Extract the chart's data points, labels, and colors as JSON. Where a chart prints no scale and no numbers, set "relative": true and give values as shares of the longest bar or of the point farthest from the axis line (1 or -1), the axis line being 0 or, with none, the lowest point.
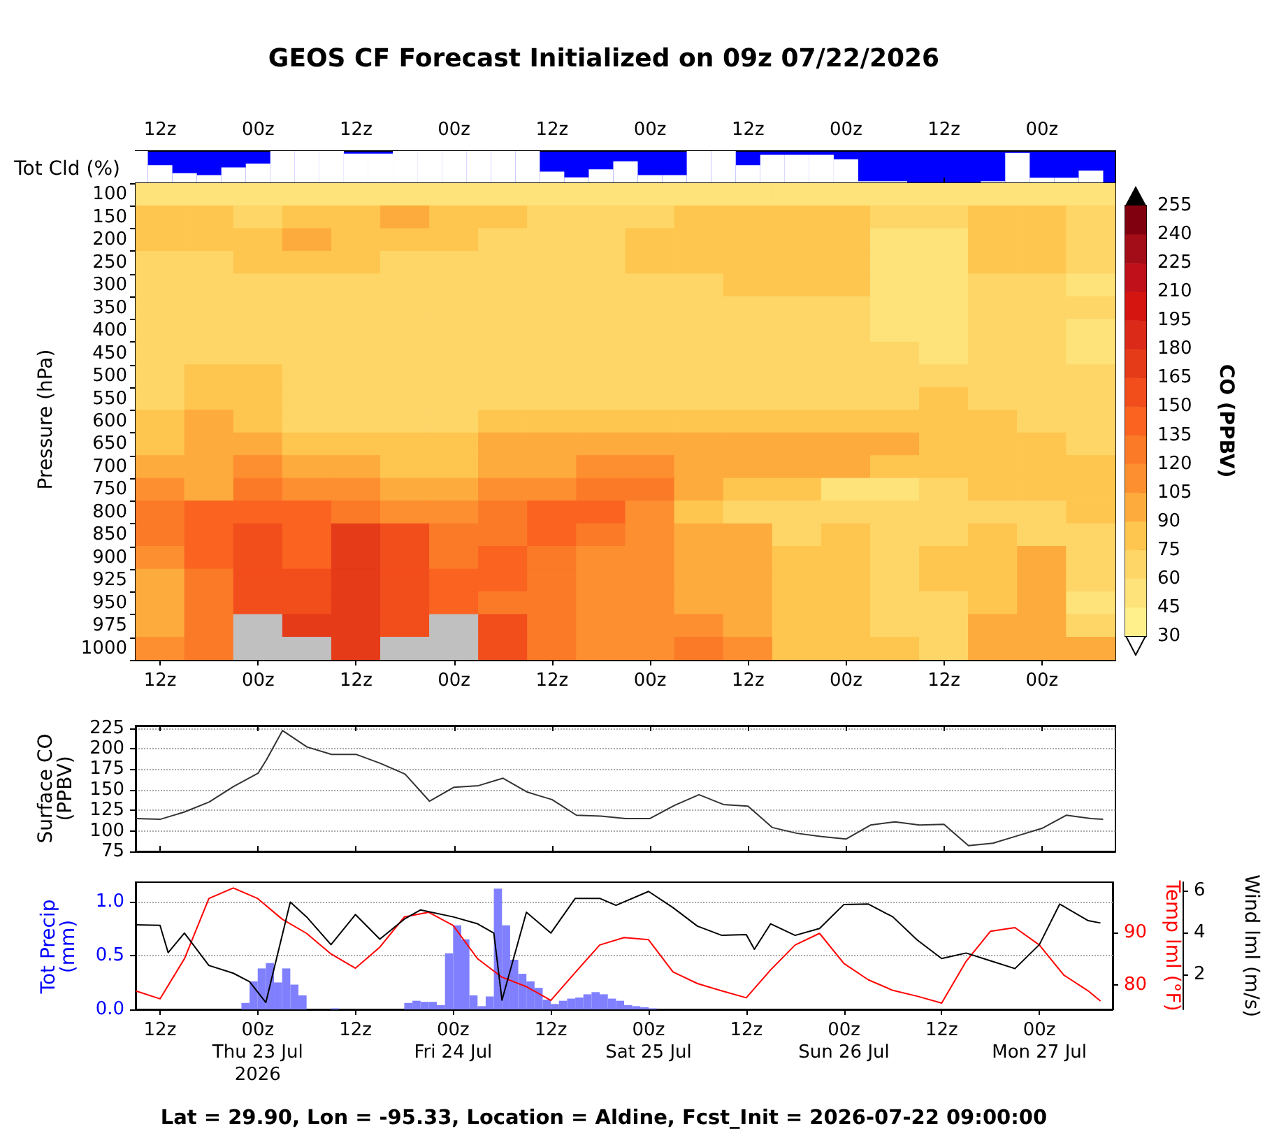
{
  "chart_data": [
    {
      "type": "bar",
      "title": "GEOS CF Forecast Initialized on 09z 07/22/2026",
      "ylabel": "Tot Cld (%)",
      "relative": true,
      "color": "#ffffff",
      "tick_labels": "x",
      "xlim": [
        "2026-07-22T09:00",
        "2026-07-27T09:00"
      ],
      "xticks": [
        {
          "value": "2026-07-22T12:00",
          "label": "12z"
        },
        {
          "value": "2026-07-23T00:00",
          "label": "00z"
        },
        {
          "value": "2026-07-23T12:00",
          "label": "12z"
        },
        {
          "value": "2026-07-24T00:00",
          "label": "00z"
        },
        {
          "value": "2026-07-24T12:00",
          "label": "12z"
        },
        {
          "value": "2026-07-25T00:00",
          "label": "00z"
        },
        {
          "value": "2026-07-25T12:00",
          "label": "12z"
        },
        {
          "value": "2026-07-26T00:00",
          "label": "00z"
        },
        {
          "value": "2026-07-26T12:00",
          "label": "12z"
        },
        {
          "value": "2026-07-27T00:00",
          "label": "00z"
        }
      ],
      "x": [
        "2026-07-22T09:00",
        "2026-07-22T12:00",
        "2026-07-22T15:00",
        "2026-07-22T18:00",
        "2026-07-22T21:00",
        "2026-07-23T00:00",
        "2026-07-23T03:00",
        "2026-07-23T06:00",
        "2026-07-23T09:00",
        "2026-07-23T12:00",
        "2026-07-23T15:00",
        "2026-07-23T18:00",
        "2026-07-23T21:00",
        "2026-07-24T00:00",
        "2026-07-24T03:00",
        "2026-07-24T06:00",
        "2026-07-24T09:00",
        "2026-07-24T12:00",
        "2026-07-24T15:00",
        "2026-07-24T18:00",
        "2026-07-24T21:00",
        "2026-07-25T00:00",
        "2026-07-25T03:00",
        "2026-07-25T06:00",
        "2026-07-25T09:00",
        "2026-07-25T12:00",
        "2026-07-25T15:00",
        "2026-07-25T18:00",
        "2026-07-25T21:00",
        "2026-07-26T00:00",
        "2026-07-26T03:00",
        "2026-07-26T06:00",
        "2026-07-26T09:00",
        "2026-07-26T12:00",
        "2026-07-26T15:00",
        "2026-07-26T18:00",
        "2026-07-26T21:00",
        "2026-07-27T00:00",
        "2026-07-27T03:00",
        "2026-07-27T06:00"
      ],
      "values": [
        1,
        0.56,
        0.31,
        0.25,
        0.49,
        0.61,
        1,
        1,
        1,
        0.92,
        0.92,
        1,
        1,
        1,
        1,
        1,
        1,
        0.36,
        0.18,
        0.43,
        0.68,
        0.25,
        0.25,
        1,
        1,
        0.56,
        0.88,
        0.88,
        0.88,
        0.74,
        0.06,
        0.06,
        0,
        0,
        0,
        0.06,
        0.94,
        0.17,
        0.17,
        0.39
      ]
    },
    {
      "type": "heatmap",
      "ylabel": "Pressure (hPa)",
      "clabel": "CO (PPBV)",
      "xlim": [
        "2026-07-22T09:00",
        "2026-07-27T09:00"
      ],
      "xticks": [
        {
          "value": "2026-07-22T12:00",
          "label": "12z"
        },
        {
          "value": "2026-07-23T00:00",
          "label": "00z"
        },
        {
          "value": "2026-07-23T12:00",
          "label": "12z"
        },
        {
          "value": "2026-07-24T00:00",
          "label": "00z"
        },
        {
          "value": "2026-07-24T12:00",
          "label": "12z"
        },
        {
          "value": "2026-07-25T00:00",
          "label": "00z"
        },
        {
          "value": "2026-07-25T12:00",
          "label": "12z"
        },
        {
          "value": "2026-07-26T00:00",
          "label": "00z"
        },
        {
          "value": "2026-07-26T12:00",
          "label": "12z"
        },
        {
          "value": "2026-07-27T00:00",
          "label": "00z"
        }
      ],
      "x": [
        "2026-07-22T12:00",
        "2026-07-22T18:00",
        "2026-07-23T00:00",
        "2026-07-23T06:00",
        "2026-07-23T12:00",
        "2026-07-23T18:00",
        "2026-07-24T00:00",
        "2026-07-24T06:00",
        "2026-07-24T12:00",
        "2026-07-24T18:00",
        "2026-07-25T00:00",
        "2026-07-25T06:00",
        "2026-07-25T12:00",
        "2026-07-25T18:00",
        "2026-07-26T00:00",
        "2026-07-26T06:00",
        "2026-07-26T12:00",
        "2026-07-26T18:00",
        "2026-07-27T00:00",
        "2026-07-27T06:00"
      ],
      "y_categories": [
        "100",
        "150",
        "200",
        "250",
        "300",
        "350",
        "400",
        "450",
        "500",
        "550",
        "600",
        "650",
        "700",
        "750",
        "800",
        "850",
        "900",
        "925",
        "950",
        "975",
        "1000"
      ],
      "clim": [
        30,
        255
      ],
      "cticks": [
        30,
        45,
        60,
        75,
        90,
        105,
        120,
        135,
        150,
        165,
        180,
        195,
        210,
        225,
        240,
        255
      ],
      "cells": [
        [
          52,
          52,
          52,
          52,
          52,
          52,
          52,
          52,
          52,
          52,
          52,
          52,
          52,
          52,
          52,
          52,
          52,
          52,
          52,
          52
        ],
        [
          82,
          82,
          67,
          82,
          82,
          97,
          82,
          82,
          67,
          67,
          67,
          82,
          82,
          82,
          82,
          67,
          67,
          82,
          82,
          67
        ],
        [
          82,
          82,
          82,
          97,
          82,
          82,
          82,
          67,
          67,
          67,
          82,
          82,
          82,
          82,
          82,
          52,
          52,
          82,
          82,
          67
        ],
        [
          67,
          67,
          82,
          82,
          82,
          67,
          67,
          67,
          67,
          67,
          82,
          82,
          82,
          82,
          82,
          52,
          52,
          82,
          82,
          67
        ],
        [
          67,
          67,
          67,
          67,
          67,
          67,
          67,
          67,
          67,
          67,
          67,
          67,
          82,
          82,
          82,
          52,
          52,
          67,
          67,
          52
        ],
        [
          67,
          67,
          67,
          67,
          67,
          67,
          67,
          67,
          67,
          67,
          67,
          67,
          67,
          67,
          67,
          52,
          52,
          67,
          67,
          67
        ],
        [
          67,
          67,
          67,
          67,
          67,
          67,
          67,
          67,
          67,
          67,
          67,
          67,
          67,
          67,
          67,
          52,
          52,
          67,
          67,
          52
        ],
        [
          67,
          67,
          67,
          67,
          67,
          67,
          67,
          67,
          67,
          67,
          67,
          67,
          67,
          67,
          67,
          67,
          52,
          67,
          67,
          52
        ],
        [
          67,
          82,
          82,
          67,
          67,
          67,
          67,
          67,
          67,
          67,
          67,
          67,
          67,
          67,
          67,
          67,
          67,
          67,
          67,
          67
        ],
        [
          67,
          82,
          82,
          67,
          67,
          67,
          67,
          67,
          67,
          67,
          67,
          67,
          67,
          67,
          67,
          67,
          82,
          67,
          67,
          67
        ],
        [
          82,
          97,
          82,
          67,
          67,
          67,
          67,
          82,
          82,
          82,
          82,
          82,
          82,
          82,
          82,
          82,
          82,
          82,
          67,
          67
        ],
        [
          82,
          97,
          97,
          82,
          82,
          82,
          82,
          97,
          97,
          97,
          97,
          97,
          97,
          97,
          97,
          97,
          82,
          82,
          82,
          67
        ],
        [
          97,
          97,
          112,
          97,
          97,
          82,
          82,
          97,
          97,
          112,
          112,
          97,
          97,
          97,
          97,
          82,
          82,
          82,
          82,
          82
        ],
        [
          112,
          97,
          127,
          112,
          112,
          97,
          97,
          112,
          112,
          127,
          127,
          97,
          82,
          82,
          52,
          52,
          67,
          82,
          82,
          82
        ],
        [
          127,
          142,
          142,
          142,
          127,
          112,
          112,
          127,
          142,
          142,
          112,
          82,
          67,
          67,
          67,
          67,
          67,
          67,
          67,
          82
        ],
        [
          127,
          142,
          157,
          142,
          172,
          157,
          127,
          127,
          142,
          127,
          112,
          97,
          97,
          67,
          82,
          67,
          67,
          82,
          67,
          67
        ],
        [
          112,
          142,
          157,
          142,
          172,
          157,
          127,
          142,
          127,
          112,
          112,
          97,
          97,
          82,
          82,
          67,
          82,
          82,
          97,
          67
        ],
        [
          97,
          127,
          157,
          157,
          172,
          157,
          142,
          142,
          127,
          112,
          112,
          97,
          97,
          82,
          82,
          67,
          82,
          82,
          97,
          67
        ],
        [
          97,
          127,
          157,
          157,
          172,
          157,
          142,
          127,
          127,
          112,
          112,
          97,
          97,
          82,
          82,
          67,
          67,
          82,
          97,
          52
        ],
        [
          97,
          127,
          null,
          172,
          172,
          157,
          null,
          157,
          127,
          112,
          112,
          112,
          97,
          82,
          82,
          67,
          67,
          97,
          97,
          67
        ],
        [
          112,
          127,
          null,
          null,
          172,
          null,
          null,
          157,
          127,
          112,
          112,
          127,
          112,
          82,
          82,
          82,
          67,
          97,
          97,
          97
        ]
      ]
    },
    {
      "type": "line",
      "ylabel": "Surface CO\n(PPBV)",
      "color": "#333333",
      "grid": "y",
      "tick_labels": "y",
      "xlim": [
        "2026-07-22T09:00",
        "2026-07-27T09:00"
      ],
      "xticks": [
        {
          "value": "2026-07-22T12:00",
          "label": null
        },
        {
          "value": "2026-07-23T00:00",
          "label": null
        },
        {
          "value": "2026-07-23T12:00",
          "label": null
        },
        {
          "value": "2026-07-24T00:00",
          "label": null
        },
        {
          "value": "2026-07-24T12:00",
          "label": null
        },
        {
          "value": "2026-07-25T00:00",
          "label": null
        },
        {
          "value": "2026-07-25T12:00",
          "label": null
        },
        {
          "value": "2026-07-26T00:00",
          "label": null
        },
        {
          "value": "2026-07-26T12:00",
          "label": null
        },
        {
          "value": "2026-07-27T00:00",
          "label": null
        }
      ],
      "ylim": [
        75,
        228
      ],
      "yticks": [
        75,
        100,
        125,
        150,
        175,
        200,
        225
      ],
      "x": [
        "2026-07-22T09:00",
        "2026-07-22T12:00",
        "2026-07-22T15:00",
        "2026-07-22T18:00",
        "2026-07-22T21:00",
        "2026-07-23T00:00",
        "2026-07-23T01:00",
        "2026-07-23T03:00",
        "2026-07-23T06:00",
        "2026-07-23T09:00",
        "2026-07-23T12:00",
        "2026-07-23T15:00",
        "2026-07-23T18:00",
        "2026-07-23T21:00",
        "2026-07-24T00:00",
        "2026-07-24T03:00",
        "2026-07-24T06:00",
        "2026-07-24T09:00",
        "2026-07-24T12:00",
        "2026-07-24T15:00",
        "2026-07-24T18:00",
        "2026-07-24T21:00",
        "2026-07-25T00:00",
        "2026-07-25T03:00",
        "2026-07-25T06:00",
        "2026-07-25T09:00",
        "2026-07-25T12:00",
        "2026-07-25T15:00",
        "2026-07-25T18:00",
        "2026-07-25T21:00",
        "2026-07-26T00:00",
        "2026-07-26T03:00",
        "2026-07-26T06:00",
        "2026-07-26T09:00",
        "2026-07-26T12:00",
        "2026-07-26T15:00",
        "2026-07-26T18:00",
        "2026-07-26T21:00",
        "2026-07-27T00:00",
        "2026-07-27T03:00",
        "2026-07-27T06:00",
        "2026-07-27T07:30"
      ],
      "values": [
        115,
        114,
        123,
        135,
        154,
        170,
        186,
        222,
        202,
        193,
        193,
        182,
        169,
        136,
        153,
        155,
        164,
        147,
        138,
        119,
        118,
        115,
        115,
        131,
        144,
        132,
        130,
        104,
        97,
        93,
        90,
        107,
        111,
        107,
        108,
        82,
        85,
        94,
        103,
        119,
        115,
        114
      ]
    },
    {
      "type": "bar",
      "ylabel": "Tot Precip\n(mm)",
      "y2label": "Temp lml (°F)",
      "y3label": "Wind lml (m/s)",
      "grid": "y",
      "annotations": [
        "Lat = 29.90, Lon = -95.33, Location = Aldine, Fcst_Init = 2026-07-22 09:00:00"
      ],
      "xlim": [
        "2026-07-22T09:00",
        "2026-07-27T09:00"
      ],
      "xticks": [
        {
          "value": "2026-07-22T12:00",
          "label": "12z"
        },
        {
          "value": "2026-07-23T00:00",
          "label": "00z\nThu 23 Jul\n2026"
        },
        {
          "value": "2026-07-23T12:00",
          "label": "12z"
        },
        {
          "value": "2026-07-24T00:00",
          "label": "00z\nFri 24 Jul"
        },
        {
          "value": "2026-07-24T12:00",
          "label": "12z"
        },
        {
          "value": "2026-07-25T00:00",
          "label": "00z\nSat 25 Jul"
        },
        {
          "value": "2026-07-25T12:00",
          "label": "12z"
        },
        {
          "value": "2026-07-26T00:00",
          "label": "00z\nSun 26 Jul"
        },
        {
          "value": "2026-07-26T12:00",
          "label": "12z"
        },
        {
          "value": "2026-07-27T00:00",
          "label": "00z\nMon 27 Jul"
        }
      ],
      "ylim": [
        0,
        1.18
      ],
      "yticks": [
        {
          "value": 0,
          "label": "0.0"
        },
        {
          "value": 0.5,
          "label": "0.5"
        },
        {
          "value": 1,
          "label": "1.0"
        }
      ],
      "y2lim": [
        75.4,
        99.5
      ],
      "y2ticks": [
        80,
        90
      ],
      "y3lim": [
        0.35,
        6.4
      ],
      "y3ticks": [
        2,
        4,
        6
      ],
      "series": [
        {
          "type": "bar",
          "color": "#8080ff",
          "x": [
            "2026-07-22T15:30",
            "2026-07-22T16:30",
            "2026-07-22T17:30",
            "2026-07-22T18:30",
            "2026-07-22T19:30",
            "2026-07-22T20:30",
            "2026-07-22T21:30",
            "2026-07-22T22:30",
            "2026-07-22T23:30",
            "2026-07-23T00:30",
            "2026-07-23T01:30",
            "2026-07-23T02:30",
            "2026-07-23T03:30",
            "2026-07-23T04:30",
            "2026-07-23T05:30",
            "2026-07-23T06:30",
            "2026-07-23T07:30",
            "2026-07-23T08:30",
            "2026-07-23T09:30",
            "2026-07-23T10:30",
            "2026-07-23T11:30",
            "2026-07-23T12:30",
            "2026-07-23T13:30",
            "2026-07-23T16:30",
            "2026-07-23T17:30",
            "2026-07-23T18:30",
            "2026-07-23T19:30",
            "2026-07-23T20:30",
            "2026-07-23T21:30",
            "2026-07-23T22:30",
            "2026-07-23T23:30",
            "2026-07-24T00:30",
            "2026-07-24T01:30",
            "2026-07-24T02:30",
            "2026-07-24T03:30",
            "2026-07-24T04:30",
            "2026-07-24T05:30",
            "2026-07-24T06:30",
            "2026-07-24T07:30",
            "2026-07-24T08:30",
            "2026-07-24T09:30",
            "2026-07-24T10:30",
            "2026-07-24T11:30",
            "2026-07-24T12:30",
            "2026-07-24T13:30",
            "2026-07-24T14:30",
            "2026-07-24T15:30",
            "2026-07-24T16:30",
            "2026-07-24T17:30",
            "2026-07-24T18:30",
            "2026-07-24T19:30",
            "2026-07-24T20:30",
            "2026-07-24T21:30",
            "2026-07-24T22:30",
            "2026-07-24T23:30",
            "2026-07-25T00:30",
            "2026-07-25T10:30",
            "2026-07-25T11:30",
            "2026-07-25T12:30",
            "2026-07-25T13:30",
            "2026-07-25T14:30",
            "2026-07-25T15:30",
            "2026-07-25T16:30",
            "2026-07-25T17:30",
            "2026-07-25T18:30",
            "2026-07-25T19:30",
            "2026-07-25T20:30",
            "2026-07-25T21:30",
            "2026-07-25T22:30",
            "2026-07-25T23:30",
            "2026-07-26T00:30",
            "2026-07-26T01:30",
            "2026-07-26T02:30",
            "2026-07-26T12:30",
            "2026-07-26T13:30",
            "2026-07-26T14:30",
            "2026-07-26T17:30",
            "2026-07-26T18:30",
            "2026-07-26T19:30",
            "2026-07-26T20:30",
            "2026-07-26T21:30",
            "2026-07-26T22:30",
            "2026-07-26T23:30"
          ],
          "values": [
            0,
            0,
            0,
            0,
            0,
            0,
            0,
            0.06,
            0.26,
            0.38,
            0.43,
            0.25,
            0.38,
            0.23,
            0.13,
            0,
            0,
            0,
            0.01,
            0,
            0,
            0,
            0,
            0,
            0,
            0.06,
            0.08,
            0.07,
            0.07,
            0.04,
            0.52,
            0.78,
            0.65,
            0.13,
            0.03,
            0.12,
            1.12,
            0.78,
            0.46,
            0.33,
            0.26,
            0.2,
            0.09,
            0.05,
            0.08,
            0.1,
            0.11,
            0.14,
            0.16,
            0.14,
            0.1,
            0.08,
            0.04,
            0.03,
            0.02,
            0.01,
            0,
            0,
            0,
            0,
            0,
            0,
            0,
            0,
            0,
            0,
            0,
            0,
            0,
            0,
            0,
            0,
            0,
            0,
            0,
            0,
            0,
            0,
            0,
            0,
            0,
            0,
            0
          ]
        },
        {
          "type": "line",
          "axis": "y2",
          "color": "#ff0000",
          "x": [
            "2026-07-22T09:00",
            "2026-07-22T12:00",
            "2026-07-22T15:00",
            "2026-07-22T18:00",
            "2026-07-22T21:00",
            "2026-07-23T00:00",
            "2026-07-23T03:00",
            "2026-07-23T06:00",
            "2026-07-23T09:00",
            "2026-07-23T12:00",
            "2026-07-23T15:00",
            "2026-07-23T18:00",
            "2026-07-23T21:00",
            "2026-07-24T00:00",
            "2026-07-24T03:00",
            "2026-07-24T06:00",
            "2026-07-24T09:00",
            "2026-07-24T12:00",
            "2026-07-24T15:00",
            "2026-07-24T18:00",
            "2026-07-24T21:00",
            "2026-07-25T00:00",
            "2026-07-25T03:00",
            "2026-07-25T06:00",
            "2026-07-25T09:00",
            "2026-07-25T12:00",
            "2026-07-25T15:00",
            "2026-07-25T18:00",
            "2026-07-25T21:00",
            "2026-07-26T00:00",
            "2026-07-26T03:00",
            "2026-07-26T06:00",
            "2026-07-26T09:00",
            "2026-07-26T12:00",
            "2026-07-26T15:00",
            "2026-07-26T18:00",
            "2026-07-26T21:00",
            "2026-07-27T00:00",
            "2026-07-27T03:00",
            "2026-07-27T06:00",
            "2026-07-27T07:30"
          ],
          "values": [
            78.9,
            77.4,
            85,
            96.4,
            98.4,
            96.4,
            92.5,
            89.8,
            85.9,
            83.2,
            87.2,
            92.9,
            93.8,
            91.3,
            85,
            81.5,
            79.7,
            77.1,
            82.4,
            87.6,
            89,
            88.6,
            82.5,
            80.3,
            78.9,
            77.6,
            82.9,
            87.6,
            89.8,
            84.1,
            81,
            79,
            77.9,
            76.6,
            84.5,
            90.2,
            90.9,
            87.6,
            81.9,
            78.9,
            77
          ]
        },
        {
          "type": "line",
          "axis": "y3",
          "color": "#000000",
          "x": [
            "2026-07-22T09:00",
            "2026-07-22T12:00",
            "2026-07-22T13:00",
            "2026-07-22T15:00",
            "2026-07-22T18:00",
            "2026-07-22T21:00",
            "2026-07-22T23:00",
            "2026-07-23T01:00",
            "2026-07-23T04:00",
            "2026-07-23T06:00",
            "2026-07-23T09:00",
            "2026-07-23T12:00",
            "2026-07-23T15:00",
            "2026-07-23T18:00",
            "2026-07-23T20:00",
            "2026-07-24T00:00",
            "2026-07-24T03:00",
            "2026-07-24T05:00",
            "2026-07-24T06:00",
            "2026-07-24T09:00",
            "2026-07-24T12:00",
            "2026-07-24T15:00",
            "2026-07-24T18:00",
            "2026-07-24T20:00",
            "2026-07-25T00:00",
            "2026-07-25T03:00",
            "2026-07-25T06:00",
            "2026-07-25T09:00",
            "2026-07-25T12:00",
            "2026-07-25T13:00",
            "2026-07-25T15:00",
            "2026-07-25T18:00",
            "2026-07-25T21:00",
            "2026-07-26T00:00",
            "2026-07-26T03:00",
            "2026-07-26T06:00",
            "2026-07-26T09:00",
            "2026-07-26T12:00",
            "2026-07-26T15:00",
            "2026-07-26T18:00",
            "2026-07-26T21:00",
            "2026-07-27T00:00",
            "2026-07-27T02:30",
            "2026-07-27T06:00",
            "2026-07-27T07:30"
          ],
          "values": [
            4.37,
            4.35,
            3.05,
            3.98,
            2.44,
            2.07,
            1.67,
            0.68,
            5.45,
            4.75,
            3.43,
            4.86,
            3.69,
            4.64,
            5.08,
            4.75,
            4.42,
            3.98,
            0.79,
            4.97,
            3.98,
            5.63,
            5.63,
            5.3,
            5.96,
            5.19,
            4.31,
            3.87,
            3.91,
            3.21,
            4.42,
            3.87,
            4.2,
            5.34,
            5.36,
            4.75,
            3.65,
            2.77,
            3.03,
            2.66,
            2.29,
            3.43,
            5.36,
            4.57,
            4.46
          ]
        }
      ]
    }
  ]
}
